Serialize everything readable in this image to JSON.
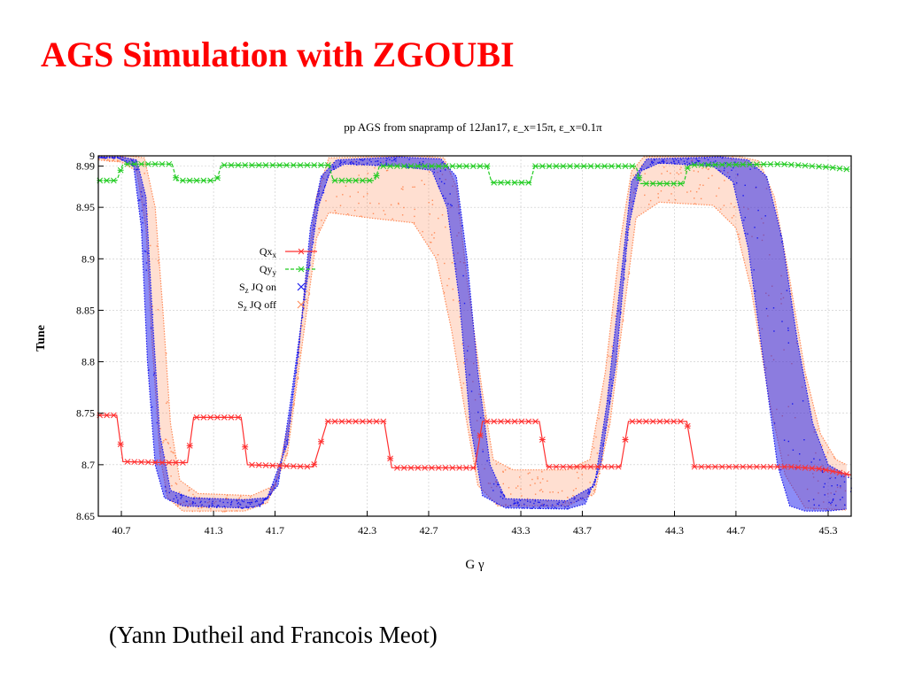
{
  "slide": {
    "title": "AGS Simulation with ZGOUBI",
    "credit": "(Yann  Dutheil and Francois Meot)"
  },
  "colors": {
    "qx": "#ff3030",
    "qy": "#22cc22",
    "sz_on": "#1a1aee",
    "sz_off": "#ff8c5a",
    "title": "#ff0000"
  },
  "chart_data": {
    "type": "scatter",
    "title": "pp AGS from snapramp of 12Jan17, ε_x=15π, ε_x=0.1π",
    "xlabel": "G γ",
    "ylabel": "Tune",
    "xlim": [
      40.55,
      45.45
    ],
    "ylim": [
      8.65,
      9.0
    ],
    "grid": true,
    "legend_position": "left-center",
    "x_ticks": [
      "40.7",
      "41.3",
      "41.7",
      "42.3",
      "42.7",
      "43.3",
      "43.7",
      "44.3",
      "44.7",
      "45.3"
    ],
    "x_tick_values": [
      40.7,
      41.3,
      41.7,
      42.3,
      42.7,
      43.3,
      43.7,
      44.3,
      44.7,
      45.3
    ],
    "y_ticks": [
      "8.65",
      "8.7",
      "8.75",
      "8.8",
      "8.85",
      "8.9",
      "8.95",
      "8.99",
      "9"
    ],
    "y_tick_values": [
      8.65,
      8.7,
      8.75,
      8.8,
      8.85,
      8.9,
      8.95,
      8.99,
      9.0
    ],
    "series": [
      {
        "name": "Qx",
        "legend_sub": "x",
        "marker": "star",
        "color": "#ff3030",
        "points": [
          [
            40.55,
            8.748
          ],
          [
            40.67,
            8.748
          ],
          [
            40.71,
            8.703
          ],
          [
            41.0,
            8.702
          ],
          [
            41.13,
            8.702
          ],
          [
            41.17,
            8.746
          ],
          [
            41.48,
            8.746
          ],
          [
            41.52,
            8.7
          ],
          [
            41.95,
            8.698
          ],
          [
            42.04,
            8.742
          ],
          [
            42.41,
            8.742
          ],
          [
            42.46,
            8.697
          ],
          [
            43.0,
            8.697
          ],
          [
            43.05,
            8.742
          ],
          [
            43.42,
            8.742
          ],
          [
            43.47,
            8.698
          ],
          [
            43.95,
            8.698
          ],
          [
            44.0,
            8.742
          ],
          [
            44.38,
            8.742
          ],
          [
            44.43,
            8.698
          ],
          [
            45.05,
            8.698
          ],
          [
            45.25,
            8.696
          ],
          [
            45.45,
            8.69
          ]
        ]
      },
      {
        "name": "Qy",
        "legend_sub": "y",
        "marker": "star",
        "color": "#22cc22",
        "points": [
          [
            40.55,
            8.976
          ],
          [
            40.67,
            8.976
          ],
          [
            40.71,
            8.992
          ],
          [
            41.03,
            8.992
          ],
          [
            41.06,
            8.976
          ],
          [
            41.32,
            8.976
          ],
          [
            41.35,
            8.991
          ],
          [
            42.05,
            8.991
          ],
          [
            42.08,
            8.976
          ],
          [
            42.35,
            8.976
          ],
          [
            42.38,
            8.99
          ],
          [
            43.08,
            8.99
          ],
          [
            43.11,
            8.974
          ],
          [
            43.36,
            8.974
          ],
          [
            43.39,
            8.99
          ],
          [
            44.05,
            8.99
          ],
          [
            44.08,
            8.973
          ],
          [
            44.36,
            8.973
          ],
          [
            44.39,
            8.991
          ],
          [
            45.0,
            8.992
          ],
          [
            45.3,
            8.989
          ],
          [
            45.42,
            8.987
          ]
        ]
      },
      {
        "name": "S JQ on",
        "legend_sub": "z",
        "marker": "x",
        "color": "#1a1aee",
        "band_lower": [
          [
            40.55,
            8.998
          ],
          [
            40.68,
            8.998
          ],
          [
            40.78,
            8.99
          ],
          [
            40.83,
            8.93
          ],
          [
            40.87,
            8.8
          ],
          [
            40.92,
            8.7
          ],
          [
            40.98,
            8.668
          ],
          [
            41.1,
            8.66
          ],
          [
            41.5,
            8.658
          ],
          [
            41.6,
            8.66
          ],
          [
            41.72,
            8.68
          ],
          [
            41.8,
            8.76
          ],
          [
            41.9,
            8.87
          ],
          [
            41.98,
            8.95
          ],
          [
            42.06,
            8.985
          ],
          [
            42.15,
            8.992
          ],
          [
            42.5,
            8.99
          ],
          [
            42.72,
            8.986
          ],
          [
            42.82,
            8.95
          ],
          [
            42.9,
            8.86
          ],
          [
            42.97,
            8.74
          ],
          [
            43.05,
            8.67
          ],
          [
            43.2,
            8.658
          ],
          [
            43.6,
            8.657
          ],
          [
            43.72,
            8.662
          ],
          [
            43.82,
            8.7
          ],
          [
            43.92,
            8.8
          ],
          [
            44.0,
            8.93
          ],
          [
            44.08,
            8.985
          ],
          [
            44.2,
            8.993
          ],
          [
            44.55,
            8.99
          ],
          [
            44.68,
            8.975
          ],
          [
            44.78,
            8.91
          ],
          [
            44.88,
            8.8
          ],
          [
            44.97,
            8.7
          ],
          [
            45.05,
            8.66
          ],
          [
            45.15,
            8.655
          ],
          [
            45.3,
            8.655
          ],
          [
            45.42,
            8.657
          ]
        ],
        "band_upper": [
          [
            40.55,
            8.999
          ],
          [
            40.7,
            8.999
          ],
          [
            40.8,
            8.996
          ],
          [
            40.86,
            8.96
          ],
          [
            40.9,
            8.85
          ],
          [
            40.95,
            8.73
          ],
          [
            41.02,
            8.675
          ],
          [
            41.15,
            8.668
          ],
          [
            41.5,
            8.666
          ],
          [
            41.65,
            8.668
          ],
          [
            41.78,
            8.72
          ],
          [
            41.86,
            8.82
          ],
          [
            41.93,
            8.93
          ],
          [
            42.0,
            8.98
          ],
          [
            42.1,
            8.996
          ],
          [
            42.5,
            8.999
          ],
          [
            42.78,
            8.997
          ],
          [
            42.88,
            8.98
          ],
          [
            42.95,
            8.9
          ],
          [
            43.02,
            8.79
          ],
          [
            43.1,
            8.7
          ],
          [
            43.2,
            8.667
          ],
          [
            43.6,
            8.665
          ],
          [
            43.78,
            8.68
          ],
          [
            43.86,
            8.76
          ],
          [
            43.95,
            8.88
          ],
          [
            44.02,
            8.975
          ],
          [
            44.12,
            8.997
          ],
          [
            44.6,
            8.999
          ],
          [
            44.78,
            8.996
          ],
          [
            44.9,
            8.98
          ],
          [
            45.0,
            8.92
          ],
          [
            45.1,
            8.82
          ],
          [
            45.2,
            8.74
          ],
          [
            45.3,
            8.7
          ],
          [
            45.42,
            8.69
          ]
        ]
      },
      {
        "name": "S JQ off",
        "legend_sub": "z",
        "marker": "x",
        "color": "#ff8c5a",
        "band_lower": [
          [
            40.55,
            8.996
          ],
          [
            40.7,
            8.994
          ],
          [
            40.8,
            8.985
          ],
          [
            40.86,
            8.93
          ],
          [
            40.9,
            8.82
          ],
          [
            40.95,
            8.71
          ],
          [
            41.0,
            8.668
          ],
          [
            41.1,
            8.655
          ],
          [
            41.5,
            8.655
          ],
          [
            41.65,
            8.663
          ],
          [
            41.78,
            8.71
          ],
          [
            41.88,
            8.82
          ],
          [
            41.97,
            8.92
          ],
          [
            42.05,
            8.945
          ],
          [
            42.3,
            8.94
          ],
          [
            42.6,
            8.935
          ],
          [
            42.75,
            8.9
          ],
          [
            42.85,
            8.83
          ],
          [
            42.95,
            8.74
          ],
          [
            43.02,
            8.68
          ],
          [
            43.15,
            8.66
          ],
          [
            43.6,
            8.66
          ],
          [
            43.78,
            8.672
          ],
          [
            43.88,
            8.74
          ],
          [
            43.98,
            8.86
          ],
          [
            44.05,
            8.94
          ],
          [
            44.2,
            8.955
          ],
          [
            44.55,
            8.952
          ],
          [
            44.7,
            8.93
          ],
          [
            44.8,
            8.87
          ],
          [
            44.92,
            8.76
          ],
          [
            45.02,
            8.69
          ],
          [
            45.15,
            8.658
          ],
          [
            45.42,
            8.656
          ]
        ],
        "band_upper": [
          [
            40.55,
            9.0
          ],
          [
            40.75,
            9.0
          ],
          [
            40.85,
            8.998
          ],
          [
            40.92,
            8.95
          ],
          [
            40.97,
            8.85
          ],
          [
            41.02,
            8.74
          ],
          [
            41.08,
            8.685
          ],
          [
            41.2,
            8.672
          ],
          [
            41.55,
            8.67
          ],
          [
            41.7,
            8.68
          ],
          [
            41.82,
            8.76
          ],
          [
            41.9,
            8.88
          ],
          [
            41.97,
            8.96
          ],
          [
            42.05,
            8.998
          ],
          [
            42.6,
            9.0
          ],
          [
            42.8,
            8.998
          ],
          [
            42.88,
            8.97
          ],
          [
            42.95,
            8.88
          ],
          [
            43.05,
            8.77
          ],
          [
            43.12,
            8.705
          ],
          [
            43.25,
            8.695
          ],
          [
            43.6,
            8.695
          ],
          [
            43.75,
            8.705
          ],
          [
            43.85,
            8.79
          ],
          [
            43.95,
            8.92
          ],
          [
            44.02,
            8.985
          ],
          [
            44.1,
            8.999
          ],
          [
            44.7,
            9.0
          ],
          [
            44.85,
            8.995
          ],
          [
            44.95,
            8.96
          ],
          [
            45.05,
            8.88
          ],
          [
            45.15,
            8.79
          ],
          [
            45.25,
            8.73
          ],
          [
            45.35,
            8.705
          ],
          [
            45.42,
            8.7
          ]
        ]
      }
    ]
  }
}
